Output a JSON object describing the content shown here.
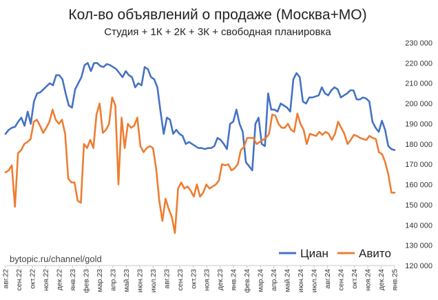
{
  "chart_data": {
    "type": "line",
    "title": "Кол-во объявлений о продаже (Москва+МО)",
    "subtitle": "Студия + 1К + 2К + 3К + свободная планировка",
    "watermark": "bytopic.ru/channel/gold",
    "ylim": [
      120000,
      230000
    ],
    "y_ticks": [
      230000,
      220000,
      210000,
      200000,
      190000,
      180000,
      170000,
      160000,
      150000,
      140000,
      130000,
      120000
    ],
    "y_tick_labels": [
      "230 000",
      "220 000",
      "210 000",
      "200 000",
      "190 000",
      "180 000",
      "170 000",
      "160 000",
      "150 000",
      "140 000",
      "130 000",
      "120 000"
    ],
    "x_tick_labels": [
      "авг.22",
      "сен.22",
      "окт.22",
      "ноя.22",
      "дек.22",
      "янв.23",
      "фев.23",
      "мар.23",
      "апр.23",
      "май.23",
      "июн.23",
      "июл.23",
      "авг.23",
      "сен.23",
      "окт.23",
      "ноя.23",
      "дек.23",
      "янв.24",
      "фев.24",
      "мар.24",
      "апр.24",
      "май.24",
      "июн.24",
      "июл.24",
      "авг.24",
      "сен.24",
      "окт.24",
      "ноя.24",
      "дек.24",
      "янв.25"
    ],
    "grid": false,
    "legend_position": "bottom-right",
    "series": [
      {
        "name": "Циан",
        "color": "#4472c4",
        "values": [
          185000,
          187000,
          188000,
          188500,
          191000,
          193000,
          189000,
          196000,
          190000,
          201000,
          205000,
          205500,
          207000,
          208500,
          210000,
          209000,
          214000,
          214000,
          212000,
          205000,
          199000,
          198000,
          207000,
          210000,
          213000,
          219000,
          220000,
          216000,
          220000,
          220000,
          218500,
          218000,
          219500,
          219000,
          218000,
          217000,
          215000,
          213000,
          216000,
          214000,
          213000,
          208000,
          210000,
          209000,
          218000,
          217000,
          213000,
          212000,
          208000,
          196000,
          185000,
          193000,
          192000,
          185000,
          187000,
          185000,
          184000,
          180000,
          181000,
          180000,
          179000,
          178000,
          178000,
          177500,
          178000,
          178000,
          179000,
          183000,
          182000,
          180000,
          177500,
          190000,
          191000,
          197000,
          190000,
          186000,
          171000,
          169000,
          167000,
          190000,
          193000,
          180000,
          179000,
          205000,
          197000,
          197000,
          196000,
          200000,
          199000,
          198000,
          196000,
          212000,
          215000,
          213000,
          201000,
          200000,
          203000,
          203000,
          203500,
          204000,
          208000,
          205000,
          204000,
          206500,
          208000,
          207000,
          203000,
          204000,
          205000,
          206500,
          206500,
          202000,
          202000,
          203000,
          202500,
          201000,
          191000,
          188000,
          186000,
          191500,
          187000,
          179000,
          177500,
          177000
        ]
      },
      {
        "name": "Авито",
        "color": "#ed7d31",
        "values": [
          166000,
          167000,
          169500,
          149000,
          175500,
          177000,
          180000,
          181000,
          182500,
          191000,
          192000,
          189000,
          185500,
          188000,
          191000,
          197000,
          192000,
          190000,
          192000,
          185000,
          163000,
          161000,
          161000,
          152000,
          151000,
          180000,
          178000,
          182000,
          178000,
          194500,
          200000,
          185500,
          187000,
          190000,
          203000,
          199000,
          160000,
          193000,
          178000,
          190000,
          188000,
          189000,
          193000,
          179000,
          176000,
          178000,
          179000,
          178000,
          168000,
          152000,
          142000,
          153000,
          148000,
          144000,
          136000,
          158000,
          161000,
          158000,
          159000,
          157000,
          154000,
          160000,
          154000,
          156000,
          160000,
          158000,
          159000,
          160000,
          162000,
          170000,
          169500,
          170000,
          167000,
          168000,
          170000,
          177000,
          178500,
          183000,
          183000,
          183000,
          180000,
          181000,
          182000,
          183000,
          185000,
          194500,
          194000,
          190000,
          188000,
          188000,
          190000,
          187000,
          186000,
          195000,
          190000,
          187000,
          180000,
          185000,
          184500,
          184000,
          186000,
          184500,
          186000,
          185000,
          182000,
          185000,
          191000,
          188000,
          185000,
          180000,
          182000,
          184500,
          184000,
          183000,
          182500,
          182000,
          184000,
          183000,
          182500,
          176000,
          175000,
          171000,
          165000,
          156000,
          156000
        ]
      }
    ]
  }
}
